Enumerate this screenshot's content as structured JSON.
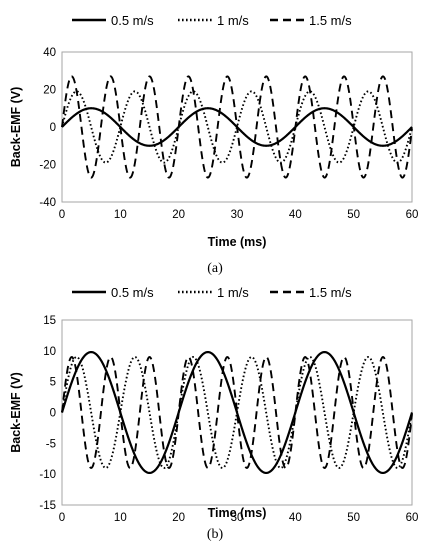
{
  "chart_data": [
    {
      "type": "line",
      "caption": "(a)",
      "xlabel": "Time (ms)",
      "ylabel": "Back-EMF (V)",
      "xlim": [
        0,
        60
      ],
      "ylim": [
        -40,
        40
      ],
      "xticks": [
        0,
        10,
        20,
        30,
        40,
        50,
        60
      ],
      "yticks": [
        -40,
        -20,
        0,
        20,
        40
      ],
      "grid": false,
      "legend": "top",
      "series": [
        {
          "name": "0.5 m/s",
          "style": "solid",
          "amplitude": 10,
          "period_ms": 20,
          "phase_ms": 0
        },
        {
          "name": "1 m/s",
          "style": "dotted",
          "amplitude": 19,
          "period_ms": 10,
          "phase_ms": 0
        },
        {
          "name": "1.5 m/s",
          "style": "dashed",
          "amplitude": 27,
          "period_ms": 6.67,
          "phase_ms": 0
        }
      ]
    },
    {
      "type": "line",
      "caption": "(b)",
      "xlabel": "Time (ms)",
      "ylabel": "Back-EMF (V)",
      "xlim": [
        0,
        60
      ],
      "ylim": [
        -15,
        15
      ],
      "xticks": [
        0,
        10,
        20,
        30,
        40,
        50,
        60
      ],
      "yticks": [
        -15,
        -10,
        -5,
        0,
        5,
        10,
        15
      ],
      "grid": false,
      "legend": "top",
      "series": [
        {
          "name": "0.5 m/s",
          "style": "solid",
          "amplitude": 9.8,
          "period_ms": 20,
          "phase_ms": 0
        },
        {
          "name": "1 m/s",
          "style": "dotted",
          "amplitude": 9,
          "period_ms": 10,
          "phase_ms": 0
        },
        {
          "name": "1.5 m/s",
          "style": "dashed",
          "amplitude": 9,
          "period_ms": 6.67,
          "phase_ms": 0
        }
      ]
    }
  ]
}
